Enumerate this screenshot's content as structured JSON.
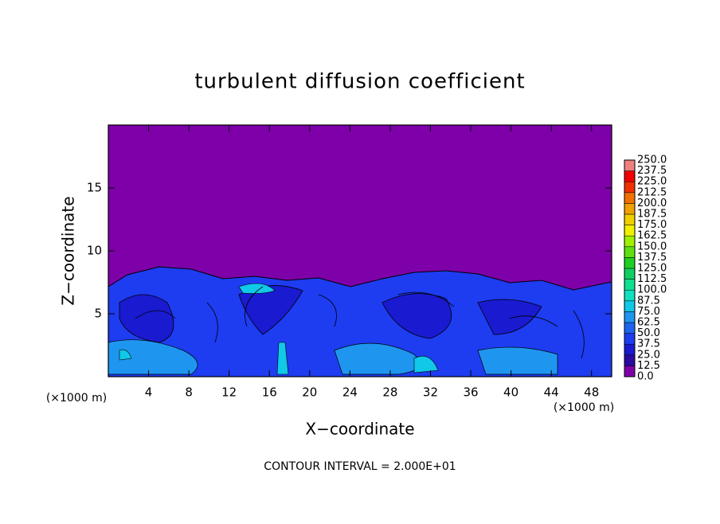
{
  "chart_data": {
    "type": "contour",
    "title": "turbulent diffusion coefficient",
    "xlabel": "X−coordinate",
    "ylabel": "Z−coordinate",
    "x_unit": "(×1000 m)",
    "x_unit_right": "(×1000 m)",
    "footer": "CONTOUR INTERVAL = 2.000E+01",
    "xlim": [
      0,
      50
    ],
    "xticks": [
      4,
      8,
      12,
      16,
      20,
      24,
      28,
      32,
      36,
      40,
      44,
      48
    ],
    "ylim": [
      0,
      20
    ],
    "yticks": [
      5,
      10,
      15
    ],
    "colorbar": {
      "levels": [
        {
          "value": 0,
          "label": "0.0"
        },
        {
          "value": 12.5,
          "label": "12.5"
        },
        {
          "value": 25,
          "label": "25.0"
        },
        {
          "value": 37.5,
          "label": "37.5"
        },
        {
          "value": 50,
          "label": "50.0"
        },
        {
          "value": 62.5,
          "label": "62.5"
        },
        {
          "value": 75,
          "label": "75.0"
        },
        {
          "value": 87.5,
          "label": "87.5"
        },
        {
          "value": 100,
          "label": "100.0"
        },
        {
          "value": 112.5,
          "label": "112.5"
        },
        {
          "value": 125,
          "label": "125.0"
        },
        {
          "value": 137.5,
          "label": "137.5"
        },
        {
          "value": 150,
          "label": "150.0"
        },
        {
          "value": 162.5,
          "label": "162.5"
        },
        {
          "value": 175,
          "label": "175.0"
        },
        {
          "value": 187.5,
          "label": "187.5"
        },
        {
          "value": 200,
          "label": "200.0"
        },
        {
          "value": 212.5,
          "label": "212.5"
        },
        {
          "value": 225,
          "label": "225.0"
        },
        {
          "value": 237.5,
          "label": "237.5"
        },
        {
          "value": 250,
          "label": "250.0"
        }
      ],
      "colors": [
        "#7d00a8",
        "#2a0aa0",
        "#1a1ad0",
        "#1e3cf0",
        "#1e64f0",
        "#1e96f0",
        "#10c8e8",
        "#10e0c0",
        "#10e090",
        "#10d060",
        "#20d020",
        "#60e010",
        "#a0f000",
        "#f0f000",
        "#f0d000",
        "#f0a000",
        "#f07000",
        "#f03000",
        "#f00000",
        "#f08080"
      ]
    }
  }
}
